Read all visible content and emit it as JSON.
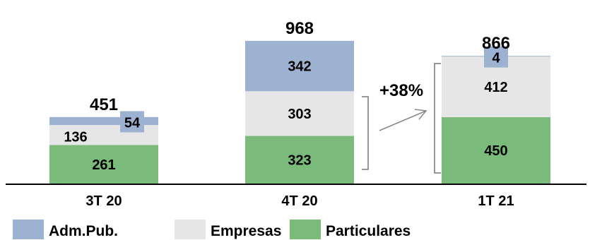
{
  "chart_data": {
    "type": "bar",
    "stacked": true,
    "categories": [
      "3T 20",
      "4T 20",
      "1T 21"
    ],
    "series": [
      {
        "name": "Particulares",
        "values": [
          261,
          323,
          450
        ],
        "color": "#7aba7a"
      },
      {
        "name": "Empresas",
        "values": [
          136,
          303,
          412
        ],
        "color": "#e6e6e6"
      },
      {
        "name": "Adm.Pub.",
        "values": [
          54,
          342,
          4
        ],
        "color": "#9db1d0"
      }
    ],
    "totals": [
      451,
      968,
      866
    ],
    "annotations": [
      {
        "text": "+38%",
        "from": "4T 20",
        "to": "1T 21"
      }
    ],
    "legend": {
      "position": "bottom"
    },
    "grid": false
  }
}
